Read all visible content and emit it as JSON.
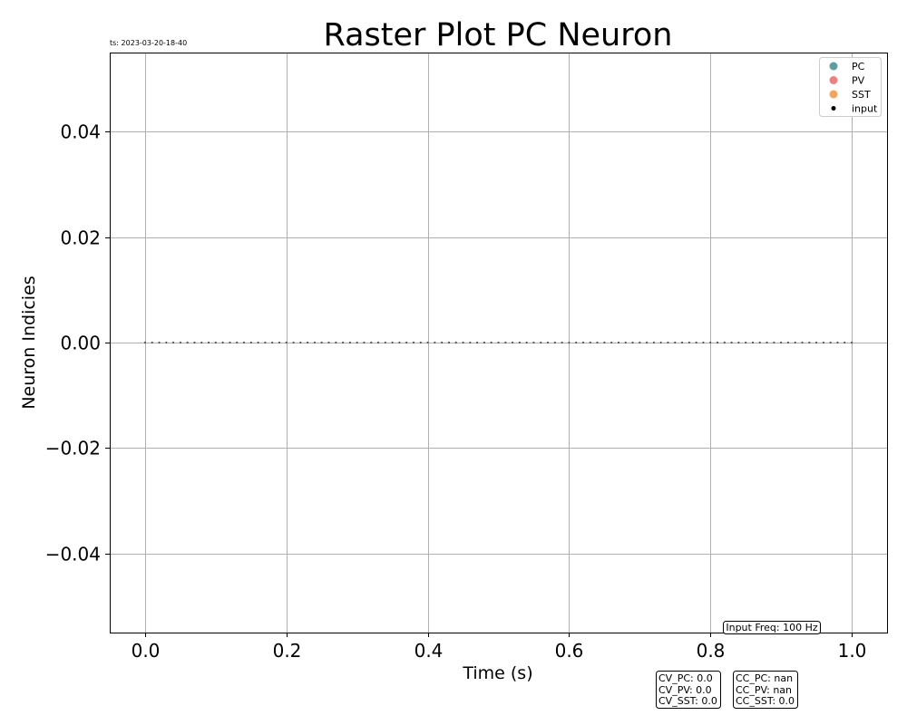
{
  "chart_data": {
    "type": "scatter",
    "title": "Raster Plot PC Neuron",
    "timestamp": "ts: 2023-03-20-18-40",
    "xlabel": "Time (s)",
    "ylabel": "Neuron Indicies",
    "xlim": [
      -0.05,
      1.05
    ],
    "ylim": [
      -0.055,
      0.055
    ],
    "xticks": [
      0.0,
      0.2,
      0.4,
      0.6,
      0.8,
      1.0
    ],
    "xtick_labels": [
      "0.0",
      "0.2",
      "0.4",
      "0.6",
      "0.8",
      "1.0"
    ],
    "yticks": [
      0.04,
      0.02,
      0.0,
      -0.02,
      -0.04
    ],
    "ytick_labels": [
      "0.04",
      "0.02",
      "0.00",
      "−0.02",
      "−0.04"
    ],
    "grid": true,
    "legend_position": "top-right",
    "legend": [
      {
        "name": "PC",
        "color": "#5f9ea0",
        "marker": "circle"
      },
      {
        "name": "PV",
        "color": "#f08080",
        "marker": "circle"
      },
      {
        "name": "SST",
        "color": "#f4a460",
        "marker": "circle"
      },
      {
        "name": "input",
        "color": "#000000",
        "marker": "dot"
      }
    ],
    "series": [
      {
        "name": "input",
        "color": "#555555",
        "spike_interval": 0.01,
        "spike_start": 0.0,
        "spike_end": 1.0,
        "neuron_index": 0
      }
    ],
    "annotations": {
      "input_freq": "Input Freq: 100 Hz",
      "cv_lines": [
        "CV_PC: 0.0",
        "CV_PV: 0.0",
        "CV_SST: 0.0"
      ],
      "cc_lines": [
        "CC_PC: nan",
        "CC_PV: nan",
        "CC_SST: 0.0"
      ]
    }
  }
}
